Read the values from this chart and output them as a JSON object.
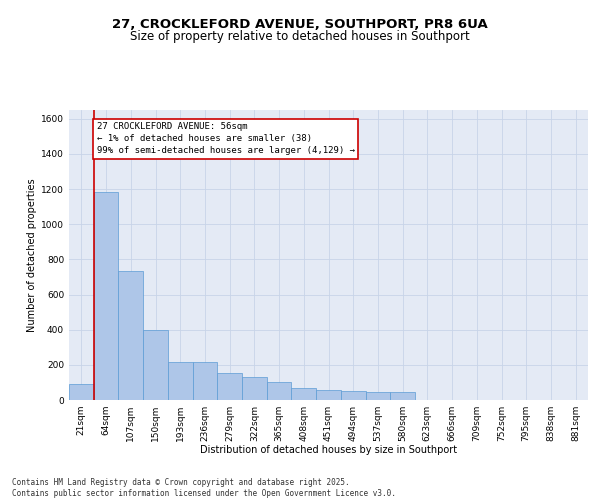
{
  "title1": "27, CROCKLEFORD AVENUE, SOUTHPORT, PR8 6UA",
  "title2": "Size of property relative to detached houses in Southport",
  "xlabel": "Distribution of detached houses by size in Southport",
  "ylabel": "Number of detached properties",
  "categories": [
    "21sqm",
    "64sqm",
    "107sqm",
    "150sqm",
    "193sqm",
    "236sqm",
    "279sqm",
    "322sqm",
    "365sqm",
    "408sqm",
    "451sqm",
    "494sqm",
    "537sqm",
    "580sqm",
    "623sqm",
    "666sqm",
    "709sqm",
    "752sqm",
    "795sqm",
    "838sqm",
    "881sqm"
  ],
  "values": [
    90,
    1185,
    735,
    400,
    215,
    215,
    155,
    130,
    105,
    70,
    55,
    50,
    45,
    45,
    0,
    0,
    0,
    0,
    0,
    0,
    0
  ],
  "bar_color": "#aec6e8",
  "bar_edge_color": "#5b9bd5",
  "grid_color": "#c8d4e8",
  "bg_color": "#e4eaf5",
  "property_line_color": "#cc0000",
  "annotation_text": "27 CROCKLEFORD AVENUE: 56sqm\n← 1% of detached houses are smaller (38)\n99% of semi-detached houses are larger (4,129) →",
  "footnote": "Contains HM Land Registry data © Crown copyright and database right 2025.\nContains public sector information licensed under the Open Government Licence v3.0.",
  "ylim": [
    0,
    1650
  ],
  "yticks": [
    0,
    200,
    400,
    600,
    800,
    1000,
    1200,
    1400,
    1600
  ],
  "title1_fontsize": 9.5,
  "title2_fontsize": 8.5,
  "axis_fontsize": 7,
  "tick_fontsize": 6.5,
  "annot_fontsize": 6.5,
  "footnote_fontsize": 5.5
}
